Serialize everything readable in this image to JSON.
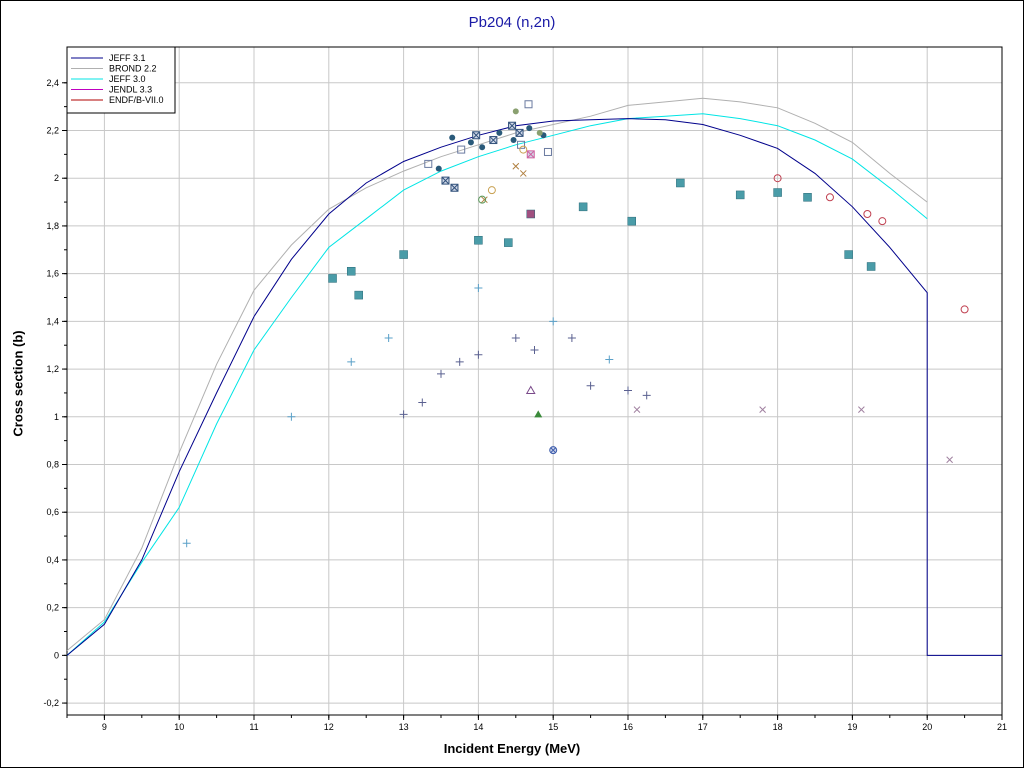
{
  "chart_data": {
    "type": "line",
    "title": "Pb204 (n,2n)",
    "xlabel": "Incident Energy (MeV)",
    "ylabel": "Cross section (b)",
    "xlim": [
      8.5,
      21
    ],
    "ylim": [
      -0.25,
      2.55
    ],
    "x_ticks": [
      "9",
      "10",
      "11",
      "12",
      "13",
      "14",
      "15",
      "16",
      "17",
      "18",
      "19",
      "20",
      "21"
    ],
    "y_ticks": [
      "-0,2",
      "0",
      "0,2",
      "0,4",
      "0,6",
      "0,8",
      "1",
      "1,2",
      "1,4",
      "1,6",
      "1,8",
      "2",
      "2,2",
      "2,4"
    ],
    "grid": true,
    "legend_position": "top-left",
    "series": [
      {
        "name": "JEFF 3.1",
        "color": "#00008b",
        "x": [
          8.5,
          9.0,
          9.5,
          10.0,
          10.5,
          11.0,
          11.5,
          12.0,
          12.5,
          13.0,
          13.5,
          14.0,
          14.5,
          15.0,
          15.5,
          16.0,
          16.5,
          17.0,
          17.5,
          18.0,
          18.5,
          19.0,
          19.5,
          20.0,
          20.0,
          21.0
        ],
        "y": [
          0.0,
          0.13,
          0.4,
          0.77,
          1.1,
          1.42,
          1.66,
          1.85,
          1.98,
          2.07,
          2.13,
          2.18,
          2.22,
          2.24,
          2.245,
          2.25,
          2.245,
          2.225,
          2.18,
          2.125,
          2.02,
          1.88,
          1.71,
          1.52,
          0.0,
          0.0
        ]
      },
      {
        "name": "BROND 2.2",
        "color": "#b0b0b0",
        "x": [
          8.5,
          9.0,
          9.5,
          10.0,
          10.5,
          11.0,
          11.5,
          12.0,
          12.5,
          13.0,
          13.5,
          14.0,
          14.5,
          15.0,
          15.5,
          16.0,
          16.5,
          17.0,
          17.5,
          18.0,
          18.5,
          19.0,
          19.5,
          20.0
        ],
        "y": [
          0.02,
          0.15,
          0.45,
          0.85,
          1.22,
          1.53,
          1.72,
          1.87,
          1.96,
          2.03,
          2.09,
          2.14,
          2.19,
          2.225,
          2.26,
          2.305,
          2.32,
          2.335,
          2.32,
          2.295,
          2.23,
          2.15,
          2.02,
          1.9
        ]
      },
      {
        "name": "JEFF 3.0",
        "color": "#00e5e5",
        "x": [
          8.5,
          9.0,
          9.5,
          10.0,
          10.5,
          11.0,
          11.5,
          12.0,
          12.5,
          13.0,
          13.5,
          14.0,
          14.5,
          15.0,
          15.5,
          16.0,
          16.5,
          17.0,
          17.5,
          18.0,
          18.5,
          19.0,
          19.5,
          20.0
        ],
        "y": [
          0.0,
          0.14,
          0.39,
          0.62,
          0.97,
          1.28,
          1.5,
          1.71,
          1.83,
          1.95,
          2.03,
          2.09,
          2.14,
          2.18,
          2.22,
          2.25,
          2.26,
          2.27,
          2.25,
          2.22,
          2.16,
          2.08,
          1.96,
          1.83
        ]
      },
      {
        "name": "JENDL 3.3",
        "color": "#c000c0",
        "x": [],
        "y": []
      },
      {
        "name": "ENDF/B-VII.0",
        "color": "#b00000",
        "x": [],
        "y": []
      }
    ],
    "experimental_points": [
      {
        "marker": "square-filled",
        "color": "#4a9ca8",
        "x": [
          12.05,
          12.3,
          12.4,
          13.0,
          14.0,
          14.4,
          15.4,
          16.05,
          16.7,
          17.5,
          18.0,
          18.4,
          18.95,
          19.25
        ],
        "y": [
          1.58,
          1.61,
          1.51,
          1.68,
          1.74,
          1.73,
          1.88,
          1.82,
          1.98,
          1.93,
          1.94,
          1.92,
          1.68,
          1.63
        ]
      },
      {
        "marker": "plus",
        "color": "#5aa0c8",
        "x": [
          10.1,
          11.5,
          12.3,
          12.8,
          14.0,
          15.0,
          15.75
        ],
        "y": [
          0.47,
          1.0,
          1.23,
          1.33,
          1.54,
          1.4,
          1.24
        ]
      },
      {
        "marker": "plus",
        "color": "#5a6090",
        "x": [
          13.0,
          13.25,
          13.5,
          13.75,
          14.0,
          14.5,
          14.75,
          15.25,
          15.5,
          16.0,
          16.25
        ],
        "y": [
          1.01,
          1.06,
          1.18,
          1.23,
          1.26,
          1.33,
          1.28,
          1.33,
          1.13,
          1.11,
          1.09
        ]
      },
      {
        "marker": "cross",
        "color": "#a080a0",
        "x": [
          16.12,
          17.8,
          19.12,
          20.3
        ],
        "y": [
          1.03,
          1.03,
          1.03,
          0.82
        ]
      },
      {
        "marker": "circle-open",
        "color": "#c04050",
        "x": [
          18.0,
          18.7,
          19.2,
          19.4,
          20.5
        ],
        "y": [
          2.0,
          1.92,
          1.85,
          1.82,
          1.45
        ]
      },
      {
        "marker": "circle-filled",
        "color": "#2a5a7a",
        "x": [
          13.47,
          13.65,
          13.9,
          14.05,
          14.28,
          14.47,
          14.68,
          14.87
        ],
        "y": [
          2.04,
          2.17,
          2.15,
          2.13,
          2.19,
          2.16,
          2.21,
          2.18
        ]
      },
      {
        "marker": "square-x",
        "color": "#30507a",
        "x": [
          13.56,
          13.68,
          13.97,
          14.2,
          14.45,
          14.55
        ],
        "y": [
          1.99,
          1.96,
          2.18,
          2.16,
          2.22,
          2.19
        ]
      },
      {
        "marker": "square-open",
        "color": "#6a7aa0",
        "x": [
          13.33,
          13.77,
          14.57,
          14.67,
          14.93
        ],
        "y": [
          2.06,
          2.12,
          2.14,
          2.31,
          2.11
        ]
      },
      {
        "marker": "square-filled-pink",
        "color": "#a05080",
        "x": [
          14.7
        ],
        "y": [
          1.85
        ]
      },
      {
        "marker": "square-x-pink",
        "color": "#d060a0",
        "x": [
          14.7
        ],
        "y": [
          2.1
        ]
      },
      {
        "marker": "triangle-filled",
        "color": "#3a8a3a",
        "x": [
          14.8
        ],
        "y": [
          1.01
        ]
      },
      {
        "marker": "triangle-open",
        "color": "#7a4a8a",
        "x": [
          14.7
        ],
        "y": [
          1.11
        ]
      },
      {
        "marker": "circle-x",
        "color": "#3a5aaa",
        "x": [
          15.0
        ],
        "y": [
          0.86
        ]
      },
      {
        "marker": "circle-open-tan",
        "color": "#c8a050",
        "x": [
          14.18,
          14.6
        ],
        "y": [
          1.95,
          2.12
        ]
      },
      {
        "marker": "cross-tan",
        "color": "#b08040",
        "x": [
          14.08,
          14.5,
          14.6
        ],
        "y": [
          1.91,
          2.05,
          2.02
        ]
      },
      {
        "marker": "hexagon-filled",
        "color": "#8aa070",
        "x": [
          14.5,
          14.82
        ],
        "y": [
          2.28,
          2.19
        ]
      },
      {
        "marker": "circle-open-green",
        "color": "#5a9a5a",
        "x": [
          14.05
        ],
        "y": [
          1.91
        ]
      }
    ]
  }
}
